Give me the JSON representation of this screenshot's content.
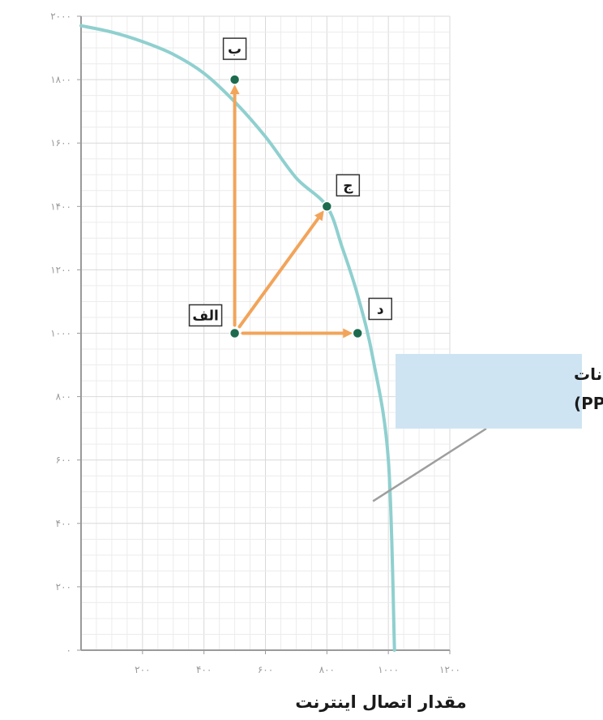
{
  "chart_data": {
    "type": "line",
    "xlabel": "مقدار اتصال اینترنت",
    "ylabel": "",
    "xlim": [
      0,
      1200
    ],
    "ylim": [
      0,
      2000
    ],
    "x_ticks": [
      200,
      400,
      600,
      800,
      1000,
      1200
    ],
    "x_tick_labels": [
      "۲۰۰",
      "۴۰۰",
      "۶۰۰",
      "۸۰۰",
      "۱۰۰۰",
      "۱۲۰۰"
    ],
    "y_ticks": [
      0,
      200,
      400,
      600,
      800,
      1000,
      1200,
      1400,
      1600,
      1800,
      2000
    ],
    "y_tick_labels": [
      "۰",
      "۲۰۰",
      "۴۰۰",
      "۶۰۰",
      "۸۰۰",
      "۱۰۰۰",
      "۱۲۰۰",
      "۱۴۰۰",
      "۱۶۰۰",
      "۱۸۰۰",
      "۲۰۰۰"
    ],
    "grid": true,
    "curve_color": "#8fd0cf",
    "arrow_color": "#f2a45a",
    "point_color": "#1d6b4e",
    "note_bg": "#cfe4f3",
    "series": [
      {
        "x": [
          0,
          100,
          200,
          300,
          400,
          500,
          600,
          700,
          800,
          850,
          900,
          950,
          1000,
          1020
        ],
        "y": [
          1970,
          1950,
          1920,
          1880,
          1820,
          1730,
          1620,
          1490,
          1400,
          1270,
          1120,
          920,
          600,
          0
        ]
      }
    ],
    "points": [
      {
        "label": "الف",
        "x": 500,
        "y": 1000
      },
      {
        "label": "ب",
        "x": 500,
        "y": 1800
      },
      {
        "label": "ج",
        "x": 800,
        "y": 1400
      },
      {
        "label": "د",
        "x": 900,
        "y": 1000
      }
    ],
    "arrows": [
      {
        "from": "الف",
        "to": "ب"
      },
      {
        "from": "الف",
        "to": "ج"
      },
      {
        "from": "الف",
        "to": "د"
      }
    ],
    "annotation": {
      "lines": [
        "منحنی مرز امکانات",
        "تولید(PPF)"
      ],
      "x": 950,
      "y": 470
    }
  }
}
